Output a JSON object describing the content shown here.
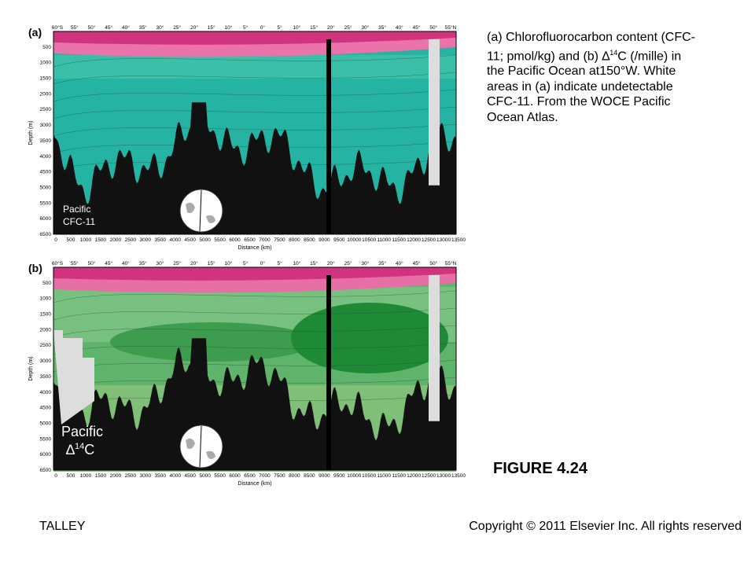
{
  "caption": {
    "before": "(a) Chlorofluorocarbon content (CFC-11; pmol/kg) and (b) ",
    "symbol": "∆",
    "sup": "14",
    "after": "C (/mille) in the Pacific Ocean at150°W. White areas in (a) indicate undetectable CFC-11. From the WOCE Pacific Ocean Atlas."
  },
  "figure_label": "FIGURE 4.24",
  "footer": {
    "left": "TALLEY",
    "right": "Copyright © 2011 Elsevier Inc. All rights reserved"
  },
  "panels": [
    {
      "label": "(a)",
      "name": "Pacific",
      "name_second": "CFC-11",
      "latitudes": [
        "60°S",
        "55°",
        "50°",
        "45°",
        "40°",
        "35°",
        "30°",
        "25°",
        "20°",
        "15°",
        "10°",
        "5°",
        "0°",
        "5°",
        "10°",
        "15°",
        "20°",
        "25°",
        "30°",
        "35°",
        "40°",
        "45°",
        "50°",
        "55°N"
      ],
      "depth_ticks": [
        "500",
        "1000",
        "1500",
        "2000",
        "2500",
        "3000",
        "3500",
        "4000",
        "4500",
        "5000",
        "5500",
        "6000",
        "6500"
      ],
      "distance_ticks": [
        "0",
        "500",
        "1000",
        "1500",
        "2000",
        "2500",
        "3000",
        "3500",
        "4000",
        "4500",
        "5000",
        "5500",
        "6000",
        "6500",
        "7000",
        "7500",
        "8000",
        "8500",
        "9000",
        "9500",
        "10000",
        "10500",
        "11000",
        "11500",
        "12000",
        "12500",
        "13000",
        "13500"
      ],
      "y_axis_label": "Depth (m)",
      "x_axis_label": "Distance (km)"
    },
    {
      "label": "(b)",
      "name": "Pacific",
      "name_symbol": "∆",
      "name_sup": "14",
      "name_rest": "C",
      "latitudes": [
        "60°S",
        "55°",
        "50°",
        "45°",
        "40°",
        "35°",
        "30°",
        "25°",
        "20°",
        "15°",
        "10°",
        "5°",
        "0°",
        "5°",
        "10°",
        "15°",
        "20°",
        "25°",
        "30°",
        "35°",
        "40°",
        "45°",
        "50°",
        "55°N"
      ],
      "depth_ticks": [
        "500",
        "1000",
        "1500",
        "2000",
        "2500",
        "3000",
        "3500",
        "4000",
        "4500",
        "5000",
        "5500",
        "6000",
        "6500"
      ],
      "distance_ticks": [
        "0",
        "500",
        "1000",
        "1500",
        "2000",
        "2500",
        "3000",
        "3500",
        "4000",
        "4500",
        "5000",
        "5500",
        "6000",
        "6500",
        "7000",
        "7500",
        "8000",
        "8500",
        "9000",
        "9500",
        "10000",
        "10500",
        "11000",
        "11500",
        "12000",
        "12500",
        "13000",
        "13500"
      ],
      "y_axis_label": "Depth (m)",
      "x_axis_label": "Distance (km)"
    }
  ]
}
